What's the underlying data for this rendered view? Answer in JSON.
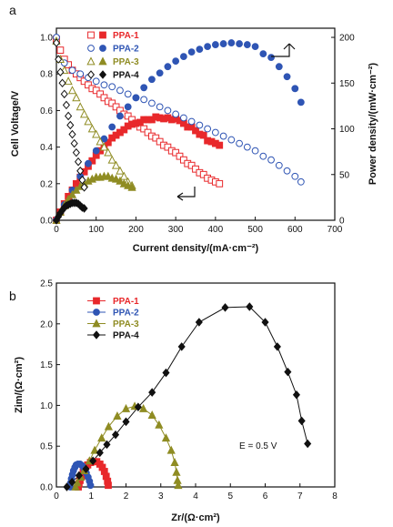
{
  "chart_data": [
    {
      "panel": "a",
      "type": "line",
      "xlabel": "Current density/(mA·cm⁻²)",
      "ylabel_left": "Cell Voltage/V",
      "ylabel_right": "Power density/(mW·cm⁻²)",
      "xlim": [
        0,
        700
      ],
      "xticks": [
        "0",
        "100",
        "200",
        "300",
        "400",
        "500",
        "600",
        "700"
      ],
      "ylim_left": [
        0,
        1.05
      ],
      "yticks_left": [
        "0.0",
        "0.2",
        "0.4",
        "0.6",
        "0.8",
        "1.0"
      ],
      "ylim_right": [
        0,
        210
      ],
      "yticks_right": [
        "0",
        "50",
        "100",
        "150",
        "200"
      ],
      "legend_position": "top-left",
      "series": [
        {
          "name": "PPA-1",
          "color": "#e8282b",
          "x": [
            0,
            10,
            20,
            30,
            40,
            50,
            60,
            70,
            80,
            90,
            100,
            110,
            120,
            130,
            140,
            150,
            160,
            170,
            180,
            190,
            200,
            210,
            220,
            230,
            240,
            250,
            260,
            270,
            280,
            290,
            300,
            310,
            320,
            330,
            340,
            350,
            360,
            370,
            380,
            390,
            400,
            410
          ],
          "voltage": [
            0.99,
            0.93,
            0.88,
            0.85,
            0.82,
            0.8,
            0.78,
            0.76,
            0.74,
            0.72,
            0.71,
            0.69,
            0.67,
            0.65,
            0.64,
            0.62,
            0.6,
            0.58,
            0.57,
            0.55,
            0.53,
            0.51,
            0.5,
            0.48,
            0.46,
            0.45,
            0.43,
            0.41,
            0.4,
            0.38,
            0.37,
            0.35,
            0.33,
            0.31,
            0.3,
            0.28,
            0.26,
            0.25,
            0.23,
            0.22,
            0.21,
            0.2
          ],
          "power": [
            0,
            9,
            18,
            26,
            33,
            40,
            47,
            53,
            59,
            65,
            71,
            76,
            80,
            85,
            90,
            93,
            96,
            99,
            103,
            105,
            106,
            107,
            110,
            110,
            110,
            113,
            112,
            111,
            112,
            110,
            111,
            109,
            106,
            102,
            102,
            98,
            94,
            93,
            87,
            86,
            84,
            82
          ]
        },
        {
          "name": "PPA-2",
          "color": "#2f55b4",
          "x": [
            0,
            20,
            40,
            60,
            80,
            100,
            120,
            140,
            160,
            180,
            200,
            220,
            240,
            260,
            280,
            300,
            320,
            340,
            360,
            380,
            400,
            420,
            440,
            460,
            480,
            500,
            520,
            540,
            560,
            580,
            600,
            615
          ],
          "voltage": [
            1.0,
            0.86,
            0.82,
            0.8,
            0.78,
            0.76,
            0.74,
            0.73,
            0.71,
            0.69,
            0.67,
            0.66,
            0.64,
            0.62,
            0.6,
            0.58,
            0.56,
            0.54,
            0.52,
            0.5,
            0.48,
            0.46,
            0.44,
            0.42,
            0.4,
            0.38,
            0.35,
            0.33,
            0.3,
            0.27,
            0.24,
            0.21
          ],
          "power": [
            0,
            17,
            33,
            48,
            62,
            76,
            89,
            102,
            114,
            124,
            134,
            145,
            154,
            161,
            168,
            174,
            179,
            184,
            187,
            190,
            192,
            193,
            194,
            193,
            192,
            190,
            182,
            178,
            168,
            157,
            144,
            129
          ]
        },
        {
          "name": "PPA-3",
          "color": "#8f8c23",
          "x": [
            0,
            10,
            20,
            30,
            40,
            50,
            60,
            70,
            80,
            90,
            100,
            110,
            120,
            130,
            140,
            150,
            160,
            170,
            180,
            190
          ],
          "voltage": [
            0.98,
            0.88,
            0.82,
            0.76,
            0.71,
            0.67,
            0.62,
            0.58,
            0.54,
            0.5,
            0.47,
            0.43,
            0.4,
            0.37,
            0.33,
            0.3,
            0.27,
            0.24,
            0.21,
            0.19
          ],
          "power": [
            0,
            9,
            16,
            23,
            28,
            33,
            37,
            40,
            43,
            45,
            47,
            47,
            48,
            48,
            46,
            45,
            43,
            40,
            38,
            36
          ]
        },
        {
          "name": "PPA-4",
          "color": "#111111",
          "x": [
            0,
            5,
            10,
            15,
            20,
            25,
            30,
            35,
            40,
            45,
            50,
            55,
            60,
            65,
            70
          ],
          "voltage": [
            0.97,
            0.88,
            0.81,
            0.75,
            0.69,
            0.63,
            0.57,
            0.52,
            0.47,
            0.42,
            0.37,
            0.32,
            0.27,
            0.22,
            0.18
          ],
          "power": [
            0,
            4,
            8,
            11,
            14,
            16,
            17,
            18,
            19,
            19,
            19,
            18,
            16,
            14,
            13
          ]
        }
      ]
    },
    {
      "panel": "b",
      "type": "scatter",
      "xlabel": "Zr/(Ω·cm²)",
      "ylabel": "Zim/(Ω·cm²)",
      "xlim": [
        0,
        8
      ],
      "xticks": [
        "0",
        "1",
        "2",
        "3",
        "4",
        "5",
        "6",
        "7",
        "8"
      ],
      "ylim": [
        0,
        2.5
      ],
      "yticks": [
        "0.0",
        "0.5",
        "1.0",
        "1.5",
        "2.0",
        "2.5"
      ],
      "legend_position": "top-left",
      "annotation": "E = 0.5 V",
      "series": [
        {
          "name": "PPA-1",
          "color": "#e8282b",
          "x": [
            0.63,
            0.65,
            0.68,
            0.72,
            0.77,
            0.83,
            0.9,
            0.98,
            1.07,
            1.16,
            1.25,
            1.32,
            1.38,
            1.43,
            1.47,
            1.49
          ],
          "y": [
            0.0,
            0.04,
            0.08,
            0.13,
            0.18,
            0.23,
            0.27,
            0.3,
            0.31,
            0.31,
            0.28,
            0.24,
            0.19,
            0.13,
            0.07,
            0.02
          ]
        },
        {
          "name": "PPA-2",
          "color": "#2f55b4",
          "x": [
            0.4,
            0.41,
            0.43,
            0.46,
            0.49,
            0.53,
            0.57,
            0.62,
            0.68,
            0.74,
            0.8,
            0.86,
            0.91,
            0.95,
            0.98
          ],
          "y": [
            0.0,
            0.05,
            0.1,
            0.15,
            0.2,
            0.24,
            0.27,
            0.28,
            0.28,
            0.26,
            0.22,
            0.17,
            0.12,
            0.07,
            0.02
          ]
        },
        {
          "name": "PPA-3",
          "color": "#8f8c23",
          "x": [
            0.55,
            0.6,
            0.7,
            0.8,
            0.95,
            1.1,
            1.3,
            1.5,
            1.75,
            2.0,
            2.25,
            2.5,
            2.75,
            2.95,
            3.15,
            3.3,
            3.4,
            3.45,
            3.48,
            3.5
          ],
          "y": [
            0.0,
            0.05,
            0.12,
            0.2,
            0.32,
            0.45,
            0.6,
            0.74,
            0.87,
            0.96,
            0.99,
            0.96,
            0.88,
            0.76,
            0.6,
            0.45,
            0.3,
            0.18,
            0.08,
            0.02
          ]
        },
        {
          "name": "PPA-4",
          "color": "#111111",
          "x": [
            0.3,
            0.45,
            0.65,
            0.85,
            1.05,
            1.25,
            1.45,
            1.7,
            2.0,
            2.35,
            2.75,
            3.15,
            3.6,
            4.1,
            4.85,
            5.55,
            6.0,
            6.35,
            6.65,
            6.9,
            7.05,
            7.22
          ],
          "y": [
            0.0,
            0.06,
            0.14,
            0.22,
            0.32,
            0.42,
            0.52,
            0.64,
            0.8,
            0.98,
            1.16,
            1.4,
            1.72,
            2.02,
            2.2,
            2.21,
            2.02,
            1.72,
            1.41,
            1.13,
            0.81,
            0.53
          ]
        }
      ]
    }
  ]
}
